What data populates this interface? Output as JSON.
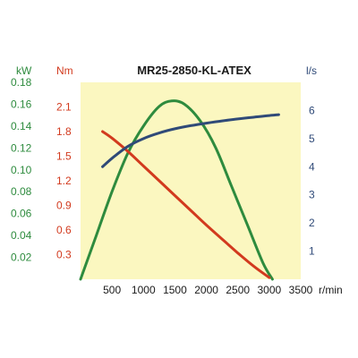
{
  "chart_data": {
    "type": "line",
    "title": "MR25-2850-KL-ATEX",
    "x": {
      "unit": "r/min",
      "ticks": [
        "500",
        "1000",
        "1500",
        "2000",
        "2500",
        "3000",
        "3500"
      ],
      "range": [
        0,
        3500
      ]
    },
    "axes": {
      "power": {
        "unit": "kW",
        "ticks": [
          "0.02",
          "0.04",
          "0.06",
          "0.08",
          "0.10",
          "0.12",
          "0.14",
          "0.16",
          "0.18"
        ],
        "range": [
          0,
          0.18
        ]
      },
      "torque": {
        "unit": "Nm",
        "ticks": [
          "0.3",
          "0.6",
          "0.9",
          "1.2",
          "1.5",
          "1.8",
          "2.1"
        ],
        "range": [
          0,
          2.4
        ]
      },
      "flow": {
        "unit": "l/s",
        "ticks": [
          "1",
          "2",
          "3",
          "4",
          "5",
          "6"
        ],
        "range": [
          0,
          7
        ]
      }
    },
    "series": [
      {
        "axis": "power",
        "color": "#2e8b3e",
        "x": [
          0,
          250,
          500,
          750,
          1000,
          1250,
          1450,
          1650,
          1900,
          2150,
          2400,
          2650,
          2900,
          3050
        ],
        "y": [
          0,
          0.04,
          0.08,
          0.115,
          0.14,
          0.158,
          0.163,
          0.16,
          0.145,
          0.12,
          0.085,
          0.05,
          0.015,
          0
        ]
      },
      {
        "axis": "torque",
        "color": "#d23a1e",
        "x": [
          350,
          500,
          750,
          1000,
          1250,
          1500,
          1750,
          2000,
          2250,
          2500,
          2750,
          3000
        ],
        "y": [
          1.8,
          1.72,
          1.56,
          1.38,
          1.2,
          1.02,
          0.84,
          0.66,
          0.49,
          0.32,
          0.16,
          0.02
        ]
      },
      {
        "axis": "flow",
        "color": "#2f4a78",
        "x": [
          350,
          500,
          750,
          1000,
          1250,
          1500,
          1750,
          2000,
          2250,
          2500,
          2750,
          3000,
          3150
        ],
        "y": [
          4.0,
          4.3,
          4.72,
          5.0,
          5.2,
          5.35,
          5.46,
          5.55,
          5.63,
          5.7,
          5.76,
          5.82,
          5.85
        ]
      }
    ],
    "grid": false,
    "background": "#fbf7c0",
    "colors": {
      "power": "#2e8b3e",
      "torque": "#d23a1e",
      "flow": "#2f4a78",
      "text": "#1a1a1a"
    }
  }
}
